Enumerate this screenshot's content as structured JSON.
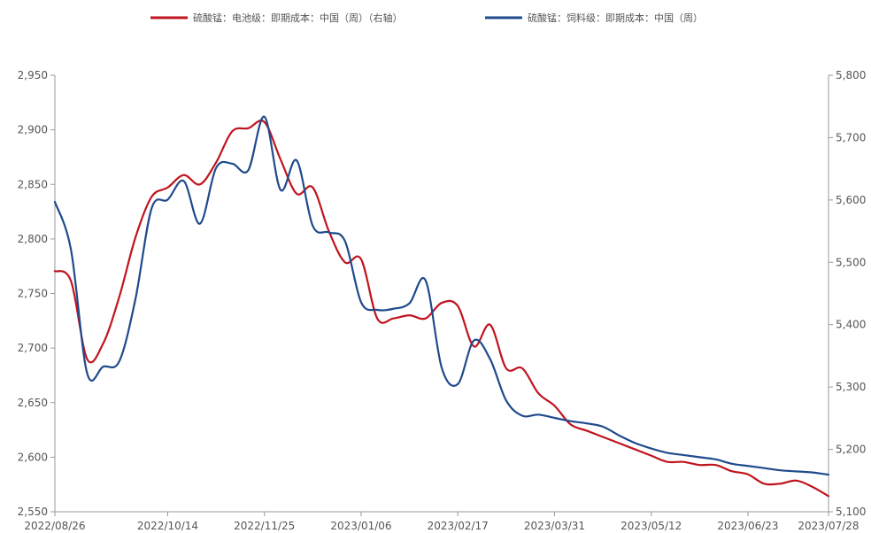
{
  "chart_data": {
    "type": "line",
    "legend_position": "top-center",
    "grid": false,
    "x_ticks": [
      "2022/08/26",
      "2022/10/14",
      "2022/11/25",
      "2023/01/06",
      "2023/02/17",
      "2023/03/31",
      "2023/05/12",
      "2023/06/23",
      "2023/07/28"
    ],
    "y_left": {
      "min": 2550,
      "max": 2950,
      "ticks": [
        "2,550",
        "2,600",
        "2,650",
        "2,700",
        "2,750",
        "2,800",
        "2,850",
        "2,900",
        "2,950"
      ]
    },
    "y_right": {
      "min": 5100,
      "max": 5800,
      "ticks": [
        "5,100",
        "5,200",
        "5,300",
        "5,400",
        "5,500",
        "5,600",
        "5,700",
        "5,800"
      ]
    },
    "series": [
      {
        "name": "硫酸锰：电池级：即期成本：中国（周）（右轴）",
        "axis": "right",
        "color": "#c0141e",
        "x": [
          "2022/08/26",
          "2022/09/02",
          "2022/09/09",
          "2022/09/16",
          "2022/09/23",
          "2022/09/30",
          "2022/10/07",
          "2022/10/14",
          "2022/10/21",
          "2022/10/28",
          "2022/11/04",
          "2022/11/11",
          "2022/11/18",
          "2022/11/25",
          "2022/12/02",
          "2022/12/09",
          "2022/12/16",
          "2022/12/23",
          "2022/12/30",
          "2023/01/06",
          "2023/01/13",
          "2023/01/20",
          "2023/01/27",
          "2023/02/03",
          "2023/02/10",
          "2023/02/17",
          "2023/02/24",
          "2023/03/03",
          "2023/03/10",
          "2023/03/17",
          "2023/03/24",
          "2023/03/31",
          "2023/04/07",
          "2023/04/14",
          "2023/04/21",
          "2023/04/28",
          "2023/05/05",
          "2023/05/12",
          "2023/05/19",
          "2023/05/26",
          "2023/06/02",
          "2023/06/09",
          "2023/06/16",
          "2023/06/23",
          "2023/06/30",
          "2023/07/07",
          "2023/07/14",
          "2023/07/21",
          "2023/07/28"
        ],
        "values": [
          5486,
          5470,
          5345,
          5370,
          5445,
          5540,
          5605,
          5620,
          5640,
          5625,
          5660,
          5710,
          5715,
          5725,
          5665,
          5610,
          5620,
          5550,
          5500,
          5505,
          5410,
          5410,
          5415,
          5410,
          5435,
          5430,
          5365,
          5400,
          5330,
          5330,
          5290,
          5270,
          5240,
          5230,
          5220,
          5210,
          5200,
          5190,
          5180,
          5180,
          5175,
          5175,
          5165,
          5160,
          5145,
          5145,
          5150,
          5140,
          5125
        ]
      },
      {
        "name": "硫酸锰：饲料级：即期成本：中国（周）",
        "axis": "left",
        "color": "#1f4a8c",
        "x": [
          "2022/08/26",
          "2022/09/02",
          "2022/09/09",
          "2022/09/16",
          "2022/09/23",
          "2022/09/30",
          "2022/10/07",
          "2022/10/14",
          "2022/10/21",
          "2022/10/28",
          "2022/11/04",
          "2022/11/11",
          "2022/11/18",
          "2022/11/25",
          "2022/12/02",
          "2022/12/09",
          "2022/12/16",
          "2022/12/23",
          "2022/12/30",
          "2023/01/06",
          "2023/01/13",
          "2023/01/20",
          "2023/01/27",
          "2023/02/03",
          "2023/02/10",
          "2023/02/17",
          "2023/02/24",
          "2023/03/03",
          "2023/03/10",
          "2023/03/17",
          "2023/03/24",
          "2023/03/31",
          "2023/04/07",
          "2023/04/14",
          "2023/04/21",
          "2023/04/28",
          "2023/05/05",
          "2023/05/12",
          "2023/05/19",
          "2023/05/26",
          "2023/06/02",
          "2023/06/09",
          "2023/06/16",
          "2023/06/23",
          "2023/06/30",
          "2023/07/07",
          "2023/07/14",
          "2023/07/21",
          "2023/07/28"
        ],
        "values": [
          2834,
          2790,
          2677,
          2683,
          2688,
          2745,
          2828,
          2836,
          2853,
          2814,
          2865,
          2869,
          2863,
          2912,
          2845,
          2872,
          2812,
          2806,
          2798,
          2742,
          2735,
          2736,
          2741,
          2762,
          2682,
          2667,
          2707,
          2690,
          2652,
          2638,
          2639,
          2636,
          2633,
          2631,
          2628,
          2620,
          2613,
          2608,
          2604,
          2602,
          2600,
          2598,
          2594,
          2592,
          2590,
          2588,
          2587,
          2586,
          2584
        ]
      }
    ]
  }
}
